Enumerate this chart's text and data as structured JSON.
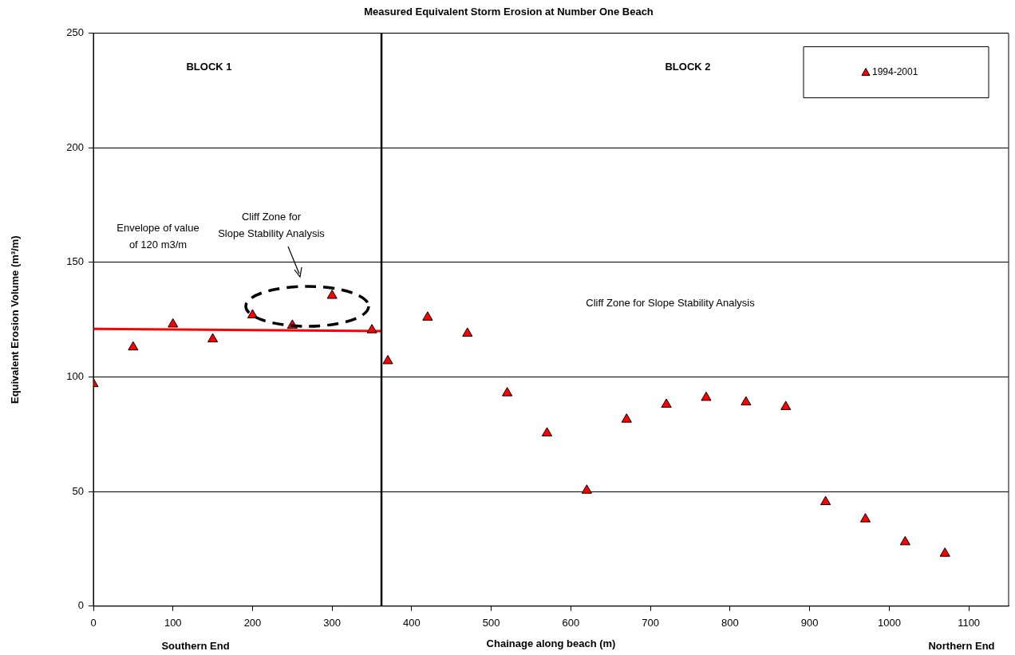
{
  "chart_data": {
    "type": "scatter",
    "title": "Measured Equivalent Storm Erosion at Number One Beach",
    "xlabel": "Chainage along beach (m)",
    "ylabel": "Equivalent Erosion Volume (m³/m)",
    "xlim": [
      0,
      1150
    ],
    "xticks": [
      0,
      100,
      200,
      300,
      400,
      500,
      600,
      700,
      800,
      900,
      1000,
      1100
    ],
    "ylim": [
      0,
      250
    ],
    "yticks": [
      0,
      50,
      100,
      150,
      200,
      250
    ],
    "grid": "y",
    "legend": "top right",
    "marker": "triangle",
    "series": [
      {
        "name": "1994-2001",
        "color": "#ff0000",
        "x": [
          0,
          50,
          100,
          150,
          200,
          250,
          300,
          350,
          370,
          420,
          470,
          520,
          570,
          620,
          670,
          720,
          770,
          820,
          870,
          920,
          970,
          1020,
          1070
        ],
        "values": [
          97,
          113,
          123,
          116.5,
          127,
          122.5,
          135.5,
          120.5,
          107,
          126,
          119,
          93,
          75.5,
          50.5,
          81.5,
          88,
          91,
          89,
          87,
          45.5,
          38,
          28,
          23
        ]
      },
      {
        "type": "line",
        "color": "#ff0000",
        "marker": "none",
        "x": [
          0,
          362
        ],
        "values": [
          121,
          120
        ]
      }
    ],
    "ref_lines": [
      {
        "axis": "x",
        "value": 362,
        "color": "#000000"
      }
    ],
    "annotations": [
      "BLOCK 1",
      "BLOCK 2",
      "Envelope of value\nof 120 m3/m",
      "Cliff Zone for\nSlope Stability Analysis",
      "Cliff Zone for Slope Stability Analysis",
      "Southern End",
      "Northern End"
    ]
  }
}
